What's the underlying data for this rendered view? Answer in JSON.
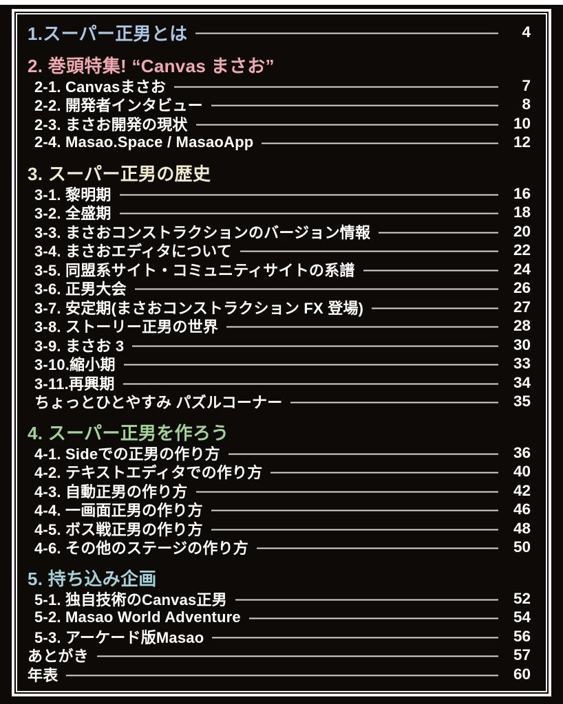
{
  "theme": {
    "background": "#0d0a08",
    "frame_border": "#f2f2f2",
    "leader_line": "#d6d6d6",
    "item_text": "#ffffff",
    "page_edge": "#ffffff"
  },
  "toc": {
    "sections": [
      {
        "heading": {
          "label": "1.スーパー正男とは",
          "color": "#a9c6e3",
          "page": "4"
        },
        "items": []
      },
      {
        "heading": {
          "label": "2. 巻頭特集! “Canvas まさお”",
          "color": "#f0a9b1"
        },
        "items": [
          {
            "label": "2-1. Canvasまさお",
            "page": "7"
          },
          {
            "label": "2-2. 開発者インタビュー",
            "page": "8"
          },
          {
            "label": "2-3. まさお開発の現状",
            "page": "10"
          },
          {
            "label": "2-4. Masao.Space / MasaoApp",
            "page": "12"
          }
        ]
      },
      {
        "heading": {
          "label": "3. スーパー正男の歴史",
          "color": "#efead0"
        },
        "items": [
          {
            "label": "3-1. 黎明期",
            "page": "16"
          },
          {
            "label": "3-2. 全盛期",
            "page": "18"
          },
          {
            "label": "3-3. まさおコンストラクションのバージョン情報",
            "page": "20"
          },
          {
            "label": "3-4. まさおエディタについて",
            "page": "22"
          },
          {
            "label": "3-5. 同盟系サイト・コミュニティサイトの系譜",
            "page": "24"
          },
          {
            "label": "3-6. 正男大会",
            "page": "26"
          },
          {
            "label": "3-7. 安定期(まさおコンストラクション FX 登場)",
            "page": "27"
          },
          {
            "label": "3-8. ストーリー正男の世界",
            "page": "28"
          },
          {
            "label": "3-9. まさお 3",
            "page": "30"
          },
          {
            "label": "3-10.縮小期",
            "page": "33"
          },
          {
            "label": "3-11.再興期",
            "page": "34"
          },
          {
            "label": "ちょっとひとやすみ パズルコーナー",
            "page": "35"
          }
        ]
      },
      {
        "heading": {
          "label": "4. スーパー正男を作ろう",
          "color": "#a3d494"
        },
        "items": [
          {
            "label": "4-1. Sideでの正男の作り方",
            "page": "36"
          },
          {
            "label": "4-2. テキストエディタでの作り方",
            "page": "40"
          },
          {
            "label": "4-3. 自動正男の作り方",
            "page": "42"
          },
          {
            "label": "4-4. 一画面正男の作り方",
            "page": "46"
          },
          {
            "label": "4-5. ボス戦正男の作り方",
            "page": "48"
          },
          {
            "label": "4-6. その他のステージの作り方",
            "page": "50"
          }
        ]
      },
      {
        "heading": {
          "label": "5. 持ち込み企画",
          "color": "#a5d2da"
        },
        "items": [
          {
            "label": "5-1. 独自技術のCanvas正男",
            "page": "52"
          },
          {
            "label": "5-2. Masao World Adventure",
            "page": "54"
          },
          {
            "label": "5-3. アーケード版Masao",
            "page": "56"
          }
        ]
      }
    ],
    "tail_entries": [
      {
        "label": "あとがき",
        "page": "57"
      },
      {
        "label": "年表",
        "page": "60"
      }
    ]
  }
}
